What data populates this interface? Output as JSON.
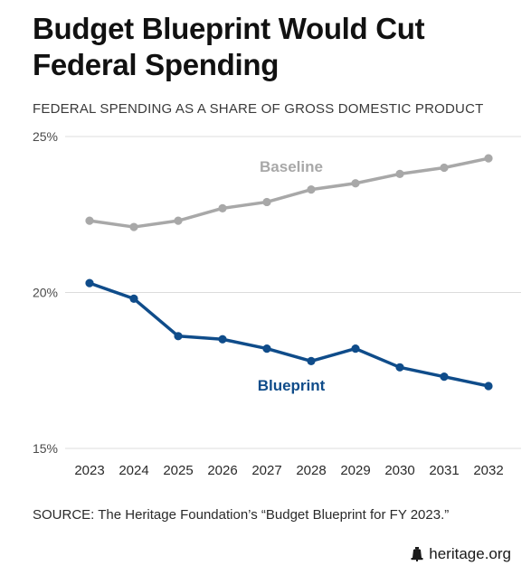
{
  "header": {
    "title_line1": "Budget Blueprint Would Cut",
    "title_line2": "Federal Spending",
    "subtitle": "FEDERAL SPENDING AS A SHARE OF GROSS DOMESTIC PRODUCT"
  },
  "chart_data": {
    "type": "line",
    "title": "Budget Blueprint Would Cut Federal Spending",
    "subtitle": "FEDERAL SPENDING AS A SHARE OF GROSS DOMESTIC PRODUCT",
    "xlabel": "",
    "ylabel": "",
    "categories": [
      "2023",
      "2024",
      "2025",
      "2026",
      "2027",
      "2028",
      "2029",
      "2030",
      "2031",
      "2032"
    ],
    "ylim": [
      15,
      25
    ],
    "yticks": [
      15,
      20,
      25
    ],
    "ytick_labels": [
      "15%",
      "20%",
      "25%"
    ],
    "grid": "horizontal",
    "legend": "inline labels",
    "series": [
      {
        "name": "Baseline",
        "color": "#a8a8a8",
        "values": [
          22.3,
          22.1,
          22.3,
          22.7,
          22.9,
          23.3,
          23.5,
          23.8,
          24.0,
          24.3
        ]
      },
      {
        "name": "Blueprint",
        "color": "#0f4c8a",
        "values": [
          20.3,
          19.8,
          18.6,
          18.5,
          18.2,
          17.8,
          18.2,
          17.6,
          17.3,
          17.0
        ]
      }
    ]
  },
  "footer": {
    "source": "SOURCE: The Heritage Foundation’s “Budget Blueprint for FY 2023.”",
    "brand": "heritage.org"
  },
  "icons": {
    "brand_icon": "liberty-bell-icon"
  }
}
